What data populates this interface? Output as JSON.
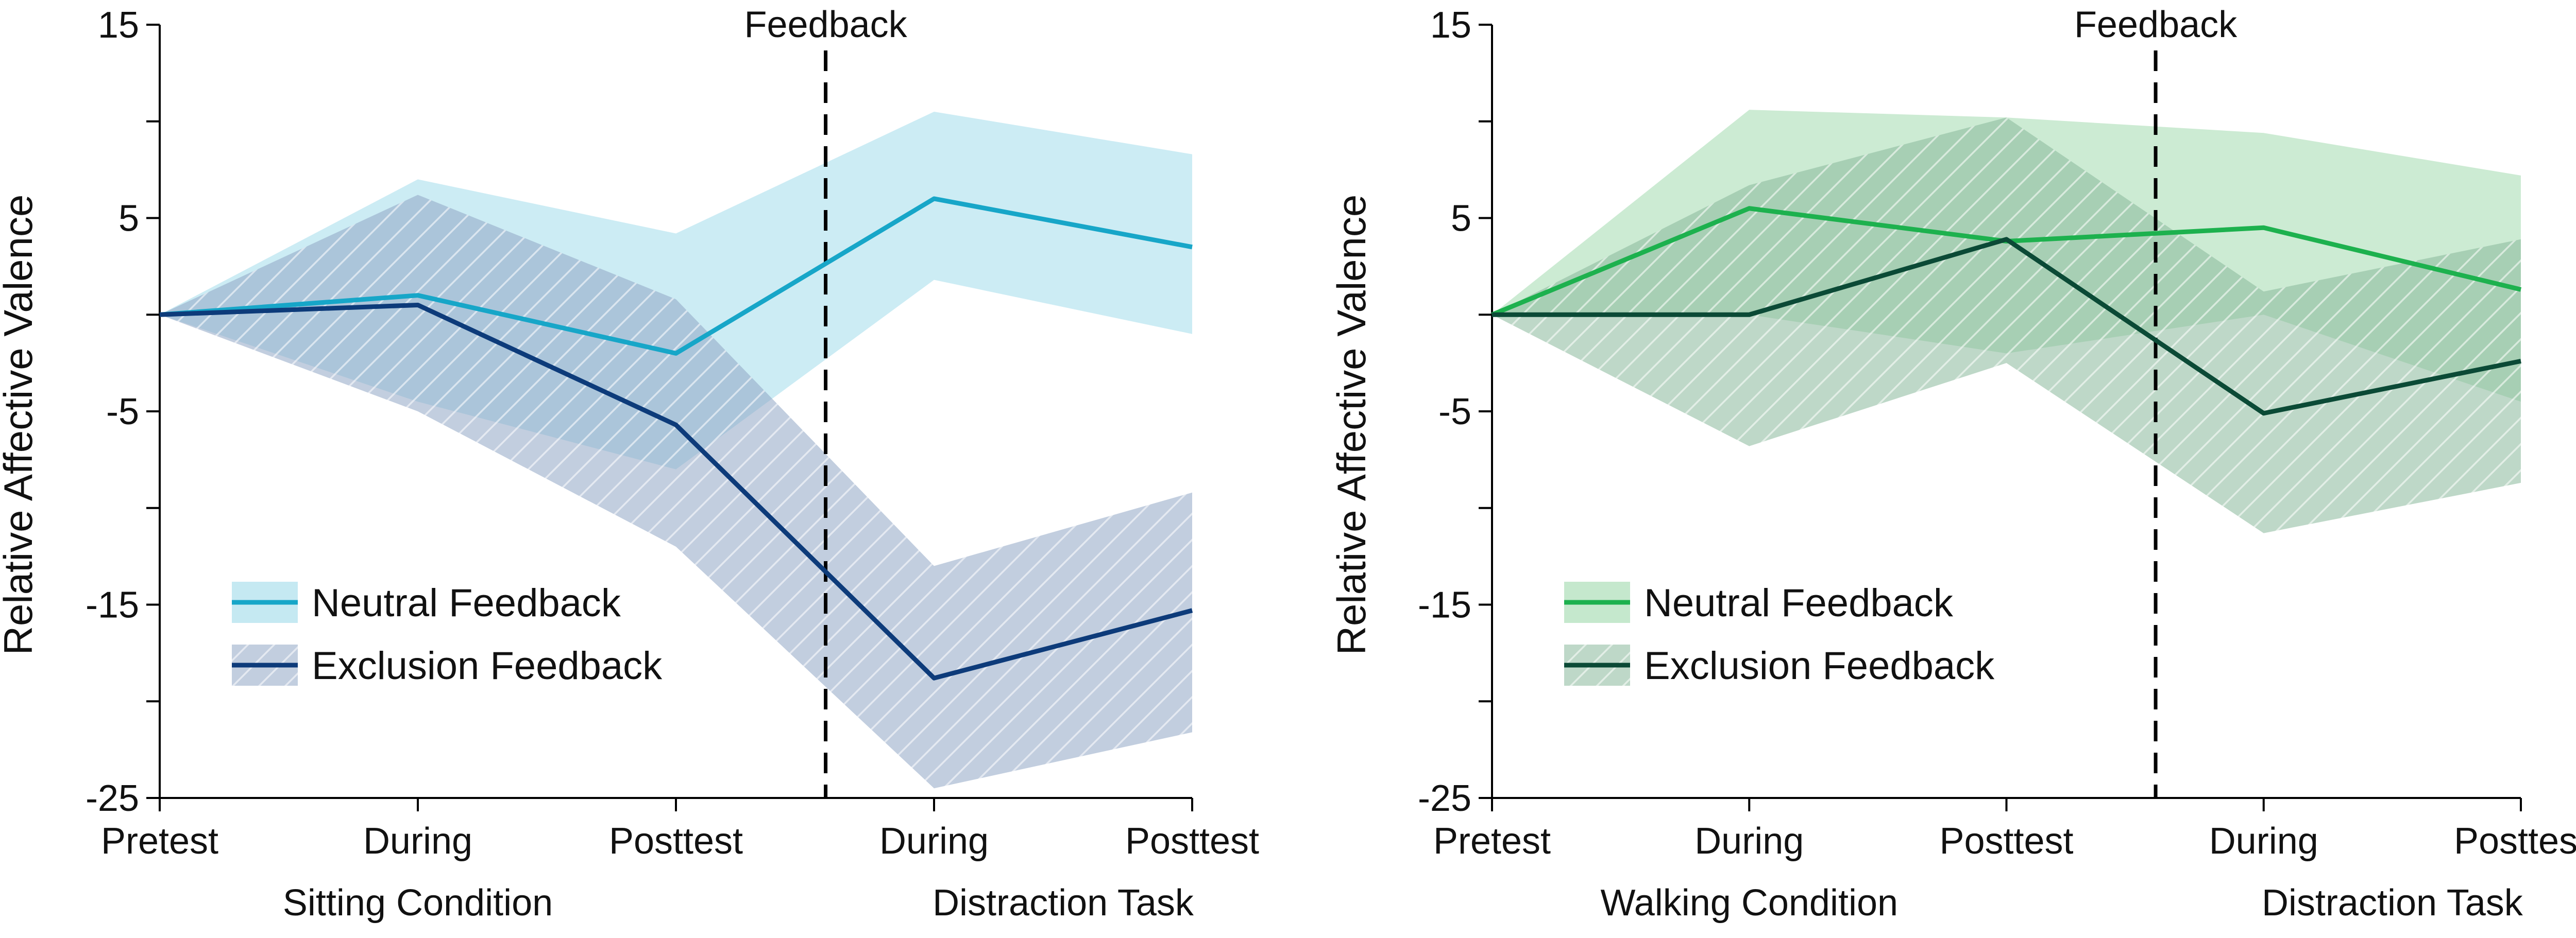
{
  "colors": {
    "sitting_neutral_line": "#17a6c8",
    "sitting_neutral_band": "#bfe7f1",
    "sitting_exclusion_line": "#0d3b7a",
    "sitting_exclusion_band": "#8fa6c5",
    "walking_neutral_line": "#1db14e",
    "walking_neutral_band": "#bfe6c8",
    "walking_exclusion_line": "#0b4a36",
    "walking_exclusion_band": "#88b89a"
  },
  "chart_data": [
    {
      "type": "line",
      "ylabel": "Relative Affective Valence",
      "ylim": [
        -25,
        15
      ],
      "yticks": [
        15,
        10,
        5,
        0,
        -5,
        -10,
        -15,
        -20,
        -25
      ],
      "ytick_labels": [
        "15",
        "",
        "5",
        "",
        "-5",
        "",
        "-15",
        "",
        "-25"
      ],
      "categories": [
        "Pretest",
        "During",
        "Posttest",
        "During",
        "Posttest"
      ],
      "group_labels": [
        "Sitting Condition",
        "Distraction Task"
      ],
      "annotation": "Feedback",
      "feedback_x": 2.58,
      "legend": {
        "placement": "bottom-left",
        "entries": [
          "Neutral Feedback",
          "Exclusion Feedback"
        ]
      },
      "series": [
        {
          "name": "Neutral Feedback",
          "values": [
            0,
            1,
            -2,
            6,
            3.5
          ],
          "upper": [
            0,
            7,
            4.2,
            10.5,
            8.3
          ],
          "lower": [
            0,
            -4.5,
            -8,
            1.8,
            -1
          ],
          "hatched": false
        },
        {
          "name": "Exclusion Feedback",
          "values": [
            0,
            0.5,
            -5.7,
            -18.8,
            -15.3
          ],
          "upper": [
            0,
            6.2,
            0.8,
            -13,
            -9.2
          ],
          "lower": [
            0,
            -5,
            -12,
            -24.5,
            -21.6
          ],
          "hatched": true
        }
      ]
    },
    {
      "type": "line",
      "ylabel": "Relative Affective Valence",
      "ylim": [
        -25,
        15
      ],
      "yticks": [
        15,
        10,
        5,
        0,
        -5,
        -10,
        -15,
        -20,
        -25
      ],
      "ytick_labels": [
        "15",
        "",
        "5",
        "",
        "-5",
        "",
        "-15",
        "",
        "-25"
      ],
      "categories": [
        "Pretest",
        "During",
        "Posttest",
        "During",
        "Posttest"
      ],
      "group_labels": [
        "Walking Condition",
        "Distraction Task"
      ],
      "annotation": "Feedback",
      "feedback_x": 2.58,
      "legend": {
        "placement": "bottom-left",
        "entries": [
          "Neutral Feedback",
          "Exclusion Feedback"
        ]
      },
      "series": [
        {
          "name": "Neutral Feedback",
          "values": [
            0,
            5.5,
            3.8,
            4.5,
            1.3
          ],
          "upper": [
            0,
            10.6,
            10.2,
            9.4,
            7.2
          ],
          "lower": [
            0,
            0,
            -2,
            0,
            -4.5
          ],
          "hatched": false
        },
        {
          "name": "Exclusion Feedback",
          "values": [
            0,
            0,
            3.9,
            -5.1,
            -2.4
          ],
          "upper": [
            0,
            6.7,
            10.2,
            1.2,
            3.9
          ],
          "lower": [
            0,
            -6.8,
            -2.5,
            -11.3,
            -8.7
          ],
          "hatched": true
        }
      ]
    }
  ]
}
